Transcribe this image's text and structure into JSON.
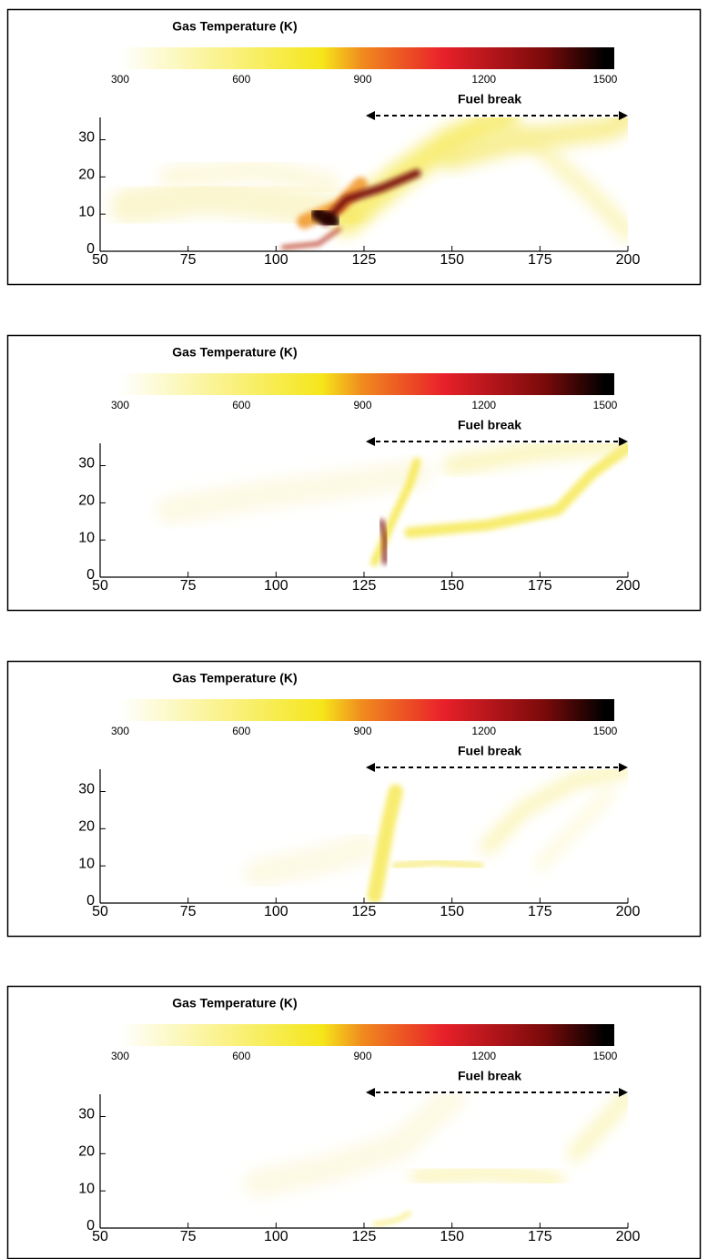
{
  "chart_data": [
    {
      "type": "heatmap",
      "colorbar_title": "Gas Temperature (K)",
      "colorbar_lim": [
        300,
        1500
      ],
      "colorbar_ticks": [
        300,
        600,
        900,
        1200,
        1500
      ],
      "colormap": [
        {
          "value": 300,
          "color": "#ffffff"
        },
        {
          "value": 800,
          "color": "#f5e61a"
        },
        {
          "value": 900,
          "color": "#f08a1e"
        },
        {
          "value": 1100,
          "color": "#e8202a"
        },
        {
          "value": 1350,
          "color": "#7a0a0a"
        },
        {
          "value": 1500,
          "color": "#000000"
        }
      ],
      "annotation": "Fuel break",
      "fuel_break_x": [
        125,
        200
      ],
      "xlim": [
        50,
        200
      ],
      "xticks": [
        50,
        75,
        100,
        125,
        150,
        175,
        200
      ],
      "ylim": [
        0,
        36
      ],
      "yticks": [
        0,
        10,
        20,
        30
      ]
    },
    {
      "type": "heatmap",
      "colorbar_title": "Gas Temperature (K)",
      "colorbar_lim": [
        300,
        1500
      ],
      "colorbar_ticks": [
        300,
        600,
        900,
        1200,
        1500
      ],
      "colormap": [
        {
          "value": 300,
          "color": "#ffffff"
        },
        {
          "value": 800,
          "color": "#f5e61a"
        },
        {
          "value": 900,
          "color": "#f08a1e"
        },
        {
          "value": 1100,
          "color": "#e8202a"
        },
        {
          "value": 1350,
          "color": "#7a0a0a"
        },
        {
          "value": 1500,
          "color": "#000000"
        }
      ],
      "annotation": "Fuel break",
      "fuel_break_x": [
        125,
        200
      ],
      "xlim": [
        50,
        200
      ],
      "xticks": [
        50,
        75,
        100,
        125,
        150,
        175,
        200
      ],
      "ylim": [
        0,
        36
      ],
      "yticks": [
        0,
        10,
        20,
        30
      ]
    },
    {
      "type": "heatmap",
      "colorbar_title": "Gas Temperature (K)",
      "colorbar_lim": [
        300,
        1500
      ],
      "colorbar_ticks": [
        300,
        600,
        900,
        1200,
        1500
      ],
      "colormap": [
        {
          "value": 300,
          "color": "#ffffff"
        },
        {
          "value": 800,
          "color": "#f5e61a"
        },
        {
          "value": 900,
          "color": "#f08a1e"
        },
        {
          "value": 1100,
          "color": "#e8202a"
        },
        {
          "value": 1350,
          "color": "#7a0a0a"
        },
        {
          "value": 1500,
          "color": "#000000"
        }
      ],
      "annotation": "Fuel break",
      "fuel_break_x": [
        125,
        200
      ],
      "xlim": [
        50,
        200
      ],
      "xticks": [
        50,
        75,
        100,
        125,
        150,
        175,
        200
      ],
      "ylim": [
        0,
        36
      ],
      "yticks": [
        0,
        10,
        20,
        30
      ]
    },
    {
      "type": "heatmap",
      "colorbar_title": "Gas Temperature (K)",
      "colorbar_lim": [
        300,
        1500
      ],
      "colorbar_ticks": [
        300,
        600,
        900,
        1200,
        1500
      ],
      "colormap": [
        {
          "value": 300,
          "color": "#ffffff"
        },
        {
          "value": 800,
          "color": "#f5e61a"
        },
        {
          "value": 900,
          "color": "#f08a1e"
        },
        {
          "value": 1100,
          "color": "#e8202a"
        },
        {
          "value": 1350,
          "color": "#7a0a0a"
        },
        {
          "value": 1500,
          "color": "#000000"
        }
      ],
      "annotation": "Fuel break",
      "fuel_break_x": [
        125,
        200
      ],
      "xlim": [
        50,
        200
      ],
      "xticks": [
        50,
        75,
        100,
        125,
        150,
        175,
        200
      ],
      "ylim": [
        0,
        36
      ],
      "yticks": [
        0,
        10,
        20,
        30
      ]
    }
  ]
}
